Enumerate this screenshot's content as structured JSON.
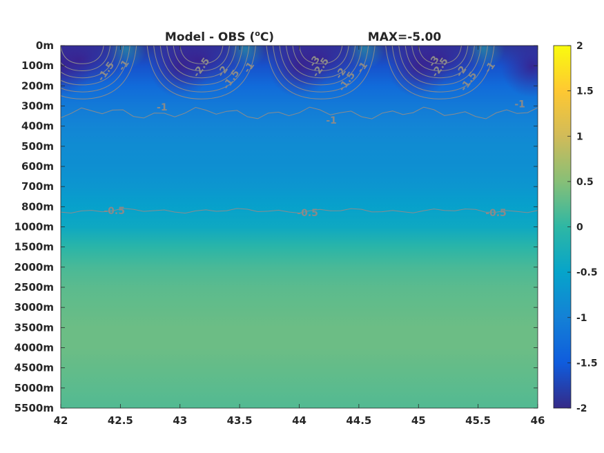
{
  "chart_data": {
    "type": "heatmap",
    "title": "Model - OBS (°C)",
    "title_unit_prefix": "Model - OBS (",
    "title_unit_sup": "o",
    "title_unit_suffix": "C)",
    "subtitle": "MAX=-5.00",
    "x_ticks": [
      "42",
      "42.5",
      "43",
      "43.5",
      "44",
      "44.5",
      "45",
      "45.5",
      "46"
    ],
    "x_values": [
      42,
      42.5,
      43,
      43.5,
      44,
      44.5,
      45,
      45.5,
      46
    ],
    "xlim": [
      42,
      46
    ],
    "y_ticks": [
      "0m",
      "100m",
      "200m",
      "300m",
      "400m",
      "500m",
      "600m",
      "700m",
      "800m",
      "1000m",
      "1500m",
      "2000m",
      "2500m",
      "3000m",
      "3500m",
      "4000m",
      "4500m",
      "5000m",
      "5500m"
    ],
    "y_direction": "down",
    "colorbar": {
      "range": [
        -2,
        2
      ],
      "ticks": [
        "2",
        "1.5",
        "1",
        "0.5",
        "0",
        "-0.5",
        "-1",
        "-1.5",
        "-2"
      ],
      "tick_values": [
        2,
        1.5,
        1,
        0.5,
        0,
        -0.5,
        -1,
        -1.5,
        -2
      ],
      "colormap": "parula"
    },
    "depth_profile": [
      {
        "depth": "0m",
        "value": -1.9
      },
      {
        "depth": "100m",
        "value": -1.6
      },
      {
        "depth": "200m",
        "value": -1.3
      },
      {
        "depth": "300m",
        "value": -1.1
      },
      {
        "depth": "400m",
        "value": -0.95
      },
      {
        "depth": "500m",
        "value": -0.85
      },
      {
        "depth": "600m",
        "value": -0.8
      },
      {
        "depth": "700m",
        "value": -0.7
      },
      {
        "depth": "800m",
        "value": -0.55
      },
      {
        "depth": "1000m",
        "value": -0.4
      },
      {
        "depth": "1500m",
        "value": -0.05
      },
      {
        "depth": "2000m",
        "value": 0.15
      },
      {
        "depth": "2500m",
        "value": 0.25
      },
      {
        "depth": "3000m",
        "value": 0.3
      },
      {
        "depth": "3500m",
        "value": 0.35
      },
      {
        "depth": "4000m",
        "value": 0.35
      },
      {
        "depth": "4500m",
        "value": 0.3
      },
      {
        "depth": "5000m",
        "value": 0.25
      },
      {
        "depth": "5500m",
        "value": 0.2
      }
    ],
    "contour_labels": [
      {
        "text": "-1.5",
        "x": 42.4,
        "depth_index": 1.2
      },
      {
        "text": "-1",
        "x": 42.55,
        "depth_index": 0.9
      },
      {
        "text": "-2.5",
        "x": 43.2,
        "depth_index": 1.0
      },
      {
        "text": "-2",
        "x": 43.38,
        "depth_index": 1.2
      },
      {
        "text": "-1.5",
        "x": 43.45,
        "depth_index": 1.6
      },
      {
        "text": "-1",
        "x": 43.6,
        "depth_index": 1.0
      },
      {
        "text": "-3",
        "x": 44.15,
        "depth_index": 0.7
      },
      {
        "text": "-2.5",
        "x": 44.2,
        "depth_index": 1.0
      },
      {
        "text": "-2",
        "x": 44.37,
        "depth_index": 1.3
      },
      {
        "text": "-1.5",
        "x": 44.42,
        "depth_index": 1.7
      },
      {
        "text": "-1",
        "x": 44.55,
        "depth_index": 1.0
      },
      {
        "text": "-3",
        "x": 45.15,
        "depth_index": 0.7
      },
      {
        "text": "-2.5",
        "x": 45.2,
        "depth_index": 1.0
      },
      {
        "text": "-2",
        "x": 45.38,
        "depth_index": 1.2
      },
      {
        "text": "-1.5",
        "x": 45.44,
        "depth_index": 1.7
      },
      {
        "text": "-1",
        "x": 45.62,
        "depth_index": 1.0
      },
      {
        "text": "-1",
        "x": 42.85,
        "depth_index": 3.05
      },
      {
        "text": "-1",
        "x": 44.27,
        "depth_index": 3.7
      },
      {
        "text": "-1",
        "x": 45.85,
        "depth_index": 2.9
      },
      {
        "text": "-0.5",
        "x": 42.45,
        "depth_index": 8.2
      },
      {
        "text": "-0.5",
        "x": 44.07,
        "depth_index": 8.3
      },
      {
        "text": "-0.5",
        "x": 45.65,
        "depth_index": 8.3
      }
    ]
  }
}
